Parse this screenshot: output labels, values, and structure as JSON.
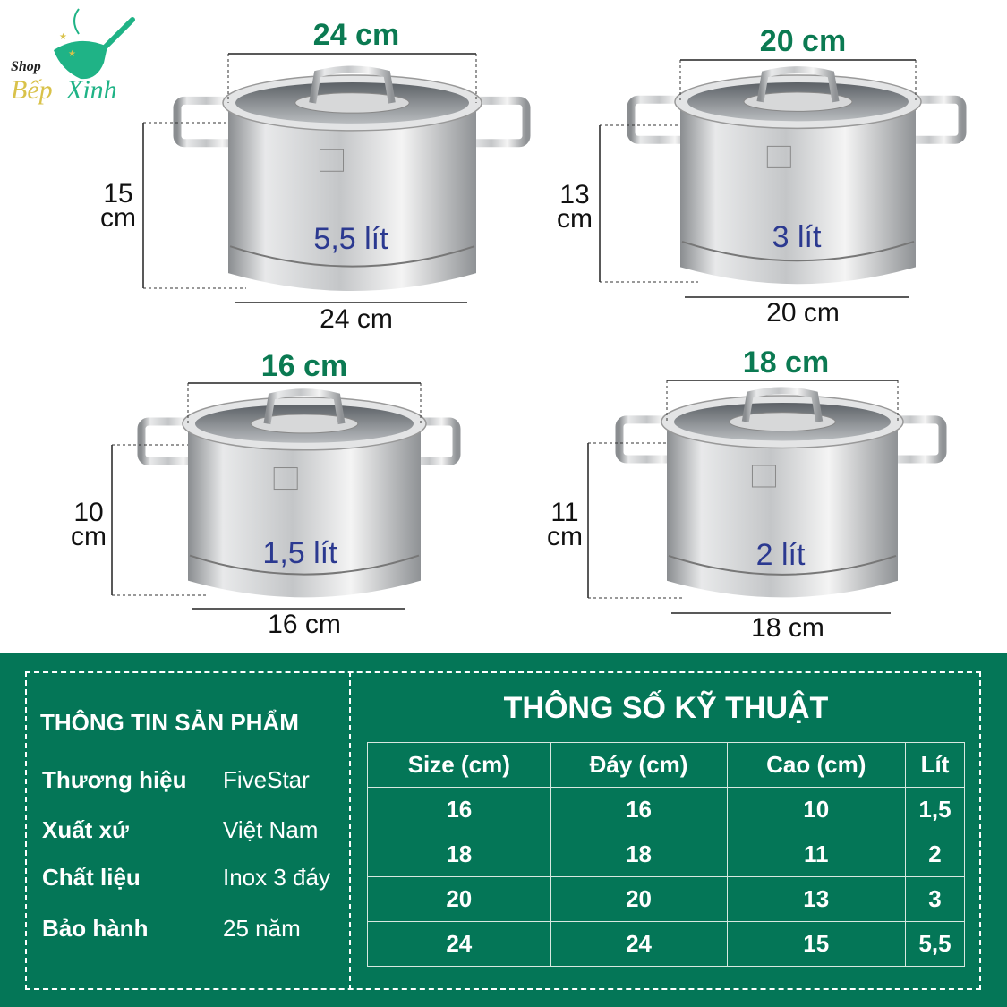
{
  "brand": {
    "logo_top": "Shop",
    "logo_word1": "Bếp",
    "logo_word2": "Xinh",
    "logo_colors": {
      "green": "#1fb386",
      "gold": "#d9c24a"
    }
  },
  "pots": [
    {
      "top_label": "24 cm",
      "bottom_label": "24 cm",
      "height_num": "15",
      "height_unit": "cm",
      "volume": "5,5 lít",
      "brand_mark": "five star"
    },
    {
      "top_label": "20 cm",
      "bottom_label": "20 cm",
      "height_num": "13",
      "height_unit": "cm",
      "volume": "3 lít",
      "brand_mark": "five star"
    },
    {
      "top_label": "16 cm",
      "bottom_label": "16 cm",
      "height_num": "10",
      "height_unit": "cm",
      "volume": "1,5 lít",
      "brand_mark": "five star"
    },
    {
      "top_label": "18 cm",
      "bottom_label": "18 cm",
      "height_num": "11",
      "height_unit": "cm",
      "volume": "2 lít",
      "brand_mark": "five star"
    }
  ],
  "info": {
    "title": "THÔNG TIN SẢN PHẨM",
    "rows": [
      {
        "key": "Thương hiệu",
        "value": "FiveStar"
      },
      {
        "key": "Xuất xứ",
        "value": "Việt Nam"
      },
      {
        "key": "Chất liệu",
        "value": "Inox 3 đáy"
      },
      {
        "key": "Bảo hành",
        "value": "25 năm"
      }
    ]
  },
  "specs": {
    "title": "THÔNG SỐ KỸ THUẬT",
    "headers": [
      "Size (cm)",
      "Đáy (cm)",
      "Cao (cm)",
      "Lít"
    ],
    "rows": [
      [
        "16",
        "16",
        "10",
        "1,5"
      ],
      [
        "18",
        "18",
        "11",
        "2"
      ],
      [
        "20",
        "20",
        "13",
        "3"
      ],
      [
        "24",
        "24",
        "15",
        "5,5"
      ]
    ]
  },
  "colors": {
    "panel": "#047657",
    "title_green": "#0b7a52",
    "volume_blue": "#2b3990"
  }
}
